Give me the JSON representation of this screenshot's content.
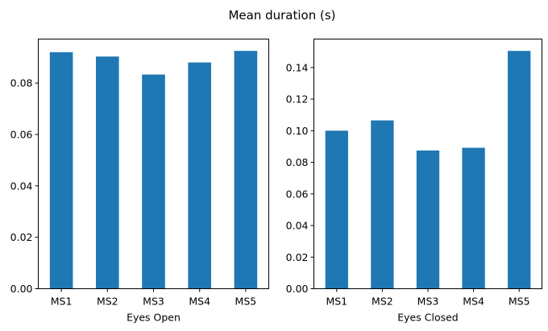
{
  "figure": {
    "suptitle": "Mean duration (s)"
  },
  "chart_data": [
    {
      "type": "bar",
      "title": "",
      "categories": [
        "MS1",
        "MS2",
        "MS3",
        "MS4",
        "MS5"
      ],
      "values": [
        0.092,
        0.0903,
        0.0833,
        0.088,
        0.0925
      ],
      "xlabel": "Eyes Open",
      "ylabel": "",
      "ylim": [
        0,
        0.0971
      ],
      "yticks": [
        0.0,
        0.02,
        0.04,
        0.06,
        0.08
      ],
      "ytick_labels": [
        "0.00",
        "0.02",
        "0.04",
        "0.06",
        "0.08"
      ],
      "bar_color": "#1f77b4",
      "grid": false
    },
    {
      "type": "bar",
      "title": "",
      "categories": [
        "MS1",
        "MS2",
        "MS3",
        "MS4",
        "MS5"
      ],
      "values": [
        0.1,
        0.1065,
        0.0875,
        0.0892,
        0.1505
      ],
      "xlabel": "Eyes Closed",
      "ylabel": "",
      "ylim": [
        0,
        0.158
      ],
      "yticks": [
        0.0,
        0.02,
        0.04,
        0.06,
        0.08,
        0.1,
        0.12,
        0.14
      ],
      "ytick_labels": [
        "0.00",
        "0.02",
        "0.04",
        "0.06",
        "0.08",
        "0.10",
        "0.12",
        "0.14"
      ],
      "bar_color": "#1f77b4",
      "grid": false
    }
  ]
}
